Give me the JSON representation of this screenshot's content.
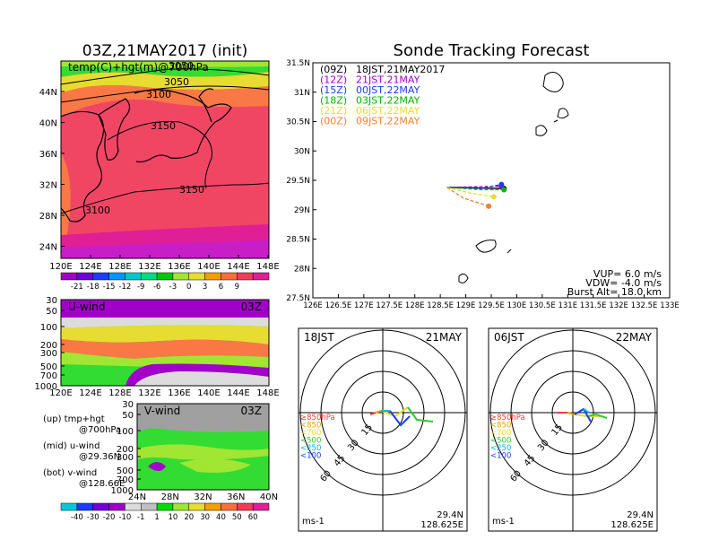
{
  "left_panel": {
    "title": "03Z,21MAY2017 (init)",
    "map_label": "temp(C)+hgt(m)@700hPa",
    "contour_labels": [
      "3050",
      "3050",
      "3100",
      "3150",
      "3150",
      "3100"
    ],
    "lat_labels": [
      "44N",
      "40N",
      "36N",
      "32N",
      "28N",
      "24N"
    ],
    "lon_labels": [
      "120E",
      "124E",
      "128E",
      "132E",
      "136E",
      "140E",
      "144E",
      "148E"
    ],
    "temp_colorbar": {
      "labels": [
        "-21",
        "-18",
        "-15",
        "-12",
        "-9",
        "-6",
        "-3",
        "0",
        "3",
        "6",
        "9"
      ],
      "colors": [
        "#a000c8",
        "#6e00dc",
        "#1e3cff",
        "#0096ff",
        "#00c8c8",
        "#00dc82",
        "#00c800",
        "#a0e632",
        "#e6dc32",
        "#f0a000",
        "#fa6e3c",
        "#f03c5a",
        "#e01e96"
      ]
    },
    "u_wind": {
      "label": "U-wind",
      "time": "03Z",
      "pressure_labels": [
        "30",
        "50",
        "100",
        "200",
        "300",
        "500",
        "700",
        "1000"
      ],
      "lon_labels": [
        "120E",
        "124E",
        "128E",
        "132E",
        "136E",
        "140E",
        "144E",
        "148E"
      ]
    },
    "v_wind": {
      "label": "V-wind",
      "time": "03Z",
      "pressure_labels": [
        "30",
        "50",
        "100",
        "200",
        "300",
        "500",
        "700",
        "1000"
      ],
      "lat_labels": [
        "24N",
        "28N",
        "32N",
        "36N",
        "40N"
      ]
    },
    "legend_lines": [
      "(up) tmp+hgt",
      "@700hPa",
      "(mid) u-wind",
      "@29.36N",
      "(bot) v-wind",
      "@128.66E"
    ],
    "wind_colorbar": {
      "labels": [
        "-40",
        "-30",
        "-20",
        "-10",
        "-1",
        "1",
        "10",
        "20",
        "30",
        "40",
        "50",
        "60"
      ],
      "colors": [
        "#00c8dc",
        "#1e3cff",
        "#6e00dc",
        "#a000c8",
        "#dcdcdc",
        "#c0c0c0",
        "#00dc00",
        "#a0e632",
        "#e6dc32",
        "#f0a000",
        "#fa6e3c",
        "#f03c5a",
        "#e01e96"
      ]
    },
    "colors": {
      "warm": "#f04664",
      "orange": "#fa7846",
      "yellow": "#e6dc32",
      "green": "#32dc32",
      "purple": "#a000c8",
      "land": "#000000"
    }
  },
  "right_panel": {
    "title": "Sonde Tracking Forecast",
    "legend": [
      {
        "code": "(09Z)",
        "text": "18JST,21MAY2017",
        "color": "#000000"
      },
      {
        "code": "(12Z)",
        "text": "21JST,21MAY",
        "color": "#a000c8"
      },
      {
        "code": "(15Z)",
        "text": "00JST,22MAY",
        "color": "#1e3cff"
      },
      {
        "code": "(18Z)",
        "text": "03JST,22MAY",
        "color": "#00b400"
      },
      {
        "code": "(21Z)",
        "text": "06JST,22MAY",
        "color": "#e6dc32"
      },
      {
        "code": "(00Z)",
        "text": "09JST,22MAY",
        "color": "#f08232"
      }
    ],
    "params": [
      "VUP= 6.0 m/s",
      "VDW= -4.0 m/s",
      "Burst Alt= 18.0 km"
    ]
  },
  "chart_data": [
    {
      "type": "line",
      "title": "Sonde Tracking Forecast",
      "xlabel": "",
      "ylabel": "",
      "xlim": [
        126,
        133
      ],
      "ylim": [
        27.5,
        31.5
      ],
      "x_ticks": [
        "126E",
        "126.5E",
        "127E",
        "127.5E",
        "128E",
        "128.5E",
        "129E",
        "129.5E",
        "130E",
        "130.5E",
        "131E",
        "131.5E",
        "132E",
        "132.5E",
        "133E"
      ],
      "y_ticks": [
        "27.5N",
        "28N",
        "28.5N",
        "29N",
        "29.5N",
        "30N",
        "30.5N",
        "31N",
        "31.5N"
      ],
      "series": [
        {
          "name": "(09Z) 18JST,21MAY2017",
          "color": "#000000",
          "x": [
            128.63,
            129.75
          ],
          "y": [
            29.38,
            29.36
          ]
        },
        {
          "name": "(12Z) 21JST,21MAY",
          "color": "#a000c8",
          "x": [
            128.63,
            129.2,
            129.7
          ],
          "y": [
            29.38,
            29.39,
            29.4
          ]
        },
        {
          "name": "(15Z) 00JST,22MAY",
          "color": "#1e3cff",
          "x": [
            128.63,
            129.3,
            129.7
          ],
          "y": [
            29.38,
            29.36,
            29.43
          ]
        },
        {
          "name": "(18Z) 03JST,22MAY",
          "color": "#00b400",
          "x": [
            128.63,
            129.3,
            129.75
          ],
          "y": [
            29.38,
            29.34,
            29.34
          ]
        },
        {
          "name": "(21Z) 06JST,22MAY",
          "color": "#e6dc32",
          "x": [
            128.63,
            129.1,
            129.55
          ],
          "y": [
            29.38,
            29.28,
            29.22
          ]
        },
        {
          "name": "(00Z) 09JST,22MAY",
          "color": "#f08232",
          "x": [
            128.63,
            128.95,
            129.45
          ],
          "y": [
            29.38,
            29.2,
            29.06
          ]
        }
      ]
    },
    {
      "type": "line",
      "title": "18JST 21MAY",
      "location": [
        "29.4N",
        "128.625E"
      ],
      "unit": "ms-1",
      "ring_labels": [
        "15",
        "30",
        "45",
        "60"
      ],
      "level_legend": [
        {
          "text": "≥850hPa",
          "color": "#f03c3c"
        },
        {
          "text": "<850",
          "color": "#f0a000"
        },
        {
          "text": "<700",
          "color": "#e6dc32"
        },
        {
          "text": "<500",
          "color": "#32c832"
        },
        {
          "text": "<250",
          "color": "#00b4dc"
        },
        {
          "text": "<100",
          "color": "#1e3cff"
        }
      ]
    },
    {
      "type": "line",
      "title": "06JST 22MAY",
      "location": [
        "29.4N",
        "128.625E"
      ],
      "unit": "ms-1",
      "ring_labels": [
        "15",
        "30",
        "45",
        "60"
      ],
      "level_legend": [
        {
          "text": "≥850hPa",
          "color": "#f03c3c"
        },
        {
          "text": "<850",
          "color": "#f0a000"
        },
        {
          "text": "<700",
          "color": "#e6dc32"
        },
        {
          "text": "<500",
          "color": "#32c832"
        },
        {
          "text": "<250",
          "color": "#00b4dc"
        },
        {
          "text": "<100",
          "color": "#1e3cff"
        }
      ]
    }
  ]
}
